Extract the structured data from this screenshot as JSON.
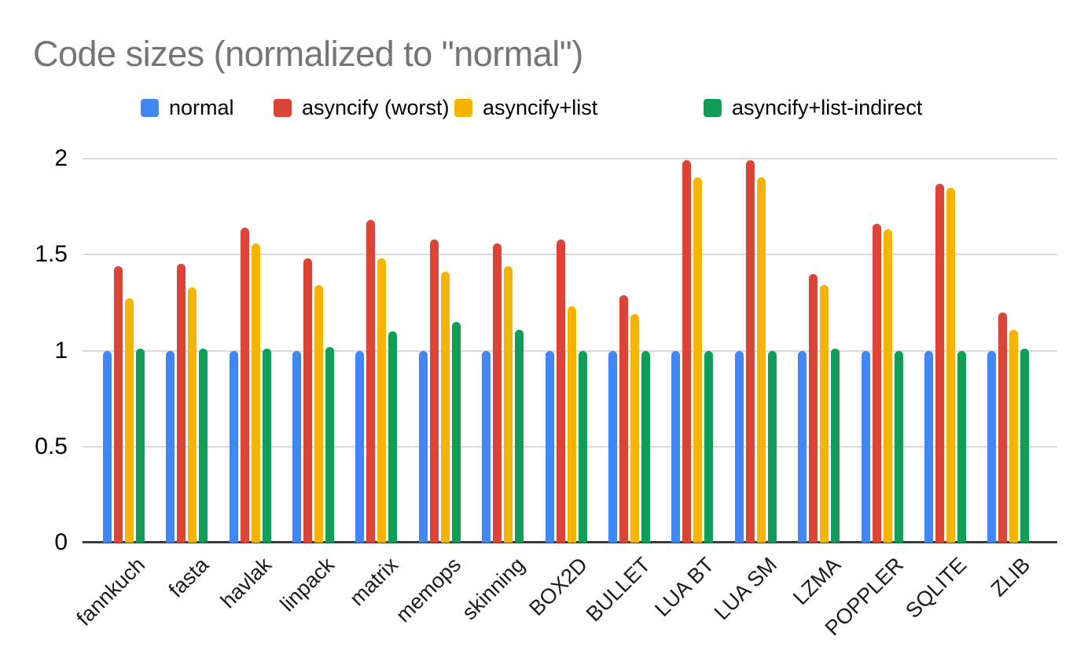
{
  "title": "Code sizes (normalized to \"normal\")",
  "chart_data": {
    "type": "bar",
    "title": "Code sizes (normalized to \"normal\")",
    "xlabel": "",
    "ylabel": "",
    "ylim": [
      0,
      2
    ],
    "yticks": [
      0,
      0.5,
      1,
      1.5,
      2
    ],
    "ytick_labels": [
      "0",
      "0.5",
      "1",
      "1.5",
      "2"
    ],
    "grid": true,
    "legend_position": "top",
    "title_color": "#757575",
    "gridline_color": "#d9d9d9",
    "axis_color": "#3b3b3b",
    "categories": [
      "fannkuch",
      "fasta",
      "havlak",
      "linpack",
      "matrix",
      "memops",
      "skinning",
      "BOX2D",
      "BULLET",
      "LUA BT",
      "LUA SM",
      "LZMA",
      "POPPLER",
      "SQLITE",
      "ZLIB"
    ],
    "series": [
      {
        "name": "normal",
        "color": "#4285F4",
        "values": [
          1.0,
          1.0,
          1.0,
          1.0,
          1.0,
          1.0,
          1.0,
          1.0,
          1.0,
          1.0,
          1.0,
          1.0,
          1.0,
          1.0,
          1.0
        ]
      },
      {
        "name": "asyncify (worst)",
        "color": "#DB4437",
        "values": [
          1.44,
          1.45,
          1.64,
          1.48,
          1.68,
          1.58,
          1.56,
          1.58,
          1.29,
          1.99,
          1.99,
          1.4,
          1.66,
          1.87,
          1.2
        ]
      },
      {
        "name": "asyncify+list",
        "color": "#F4B400",
        "values": [
          1.27,
          1.33,
          1.56,
          1.34,
          1.48,
          1.41,
          1.44,
          1.23,
          1.19,
          1.9,
          1.9,
          1.34,
          1.63,
          1.85,
          1.11
        ]
      },
      {
        "name": "asyncify+list-indirect",
        "color": "#0F9D58",
        "values": [
          1.01,
          1.01,
          1.01,
          1.02,
          1.1,
          1.15,
          1.11,
          1.0,
          1.0,
          1.0,
          1.0,
          1.01,
          1.0,
          1.0,
          1.01
        ]
      }
    ]
  }
}
